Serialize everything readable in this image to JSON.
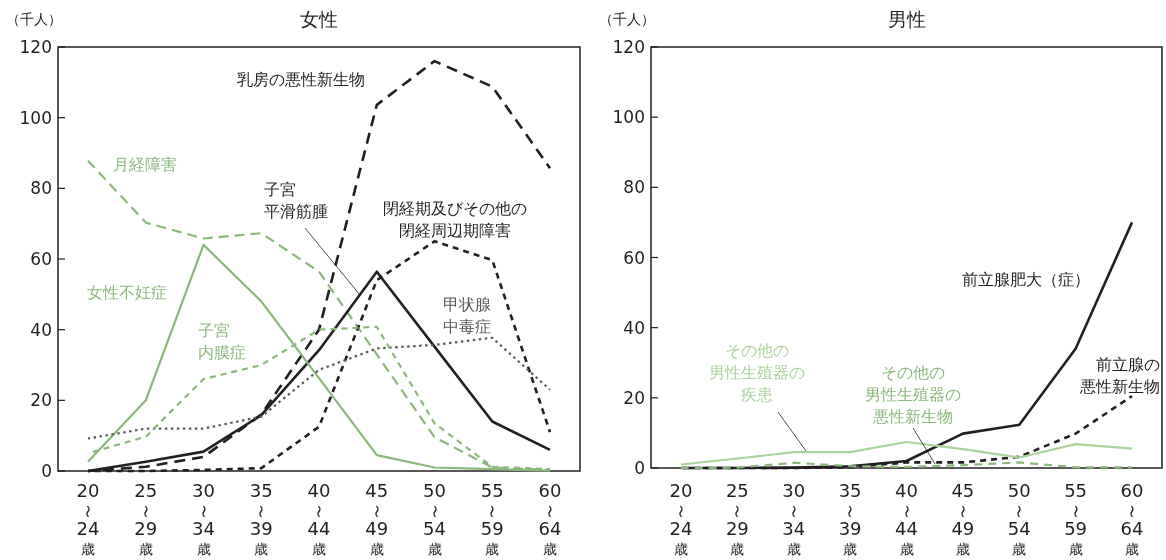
{
  "chart_data": [
    {
      "type": "line",
      "title": "女性",
      "ylabel": "（千人）",
      "categories": [
        "20\n〜\n24\n歳",
        "25\n〜\n29\n歳",
        "30\n〜\n34\n歳",
        "35\n〜\n39\n歳",
        "40\n〜\n44\n歳",
        "45\n〜\n49\n歳",
        "50\n〜\n54\n歳",
        "55\n〜\n59\n歳",
        "60\n〜\n64\n歳"
      ],
      "ylim": [
        0,
        120
      ],
      "yticks": [
        0,
        20,
        40,
        60,
        80,
        100,
        120
      ],
      "grid": false,
      "marker": "none",
      "series": [
        {
          "name": "乳房の悪性新生物",
          "color": "#231f20",
          "line_style": "dashed",
          "values": [
            0,
            1.2,
            4,
            16,
            40,
            103.6,
            116,
            108.8,
            85.7
          ]
        },
        {
          "name": "月経障害",
          "color": "#8ab87a",
          "line_style": "dashed",
          "values": [
            87.8,
            70.3,
            65.8,
            67.3,
            56.4,
            33,
            9.6,
            1,
            0.3
          ]
        },
        {
          "name": "子宮平滑筋腫",
          "color": "#231f20",
          "line_style": "solid",
          "values": [
            0,
            2.6,
            5.5,
            15.8,
            34.2,
            56.4,
            35.2,
            14,
            6
          ]
        },
        {
          "name": "閉経期及びその他の閉経周辺期障害",
          "color": "#231f20",
          "line_style": "dashed",
          "values": [
            0,
            0,
            0.3,
            0.8,
            12.5,
            54,
            65,
            59.7,
            11
          ]
        },
        {
          "name": "女性不妊症",
          "color": "#8ab87a",
          "line_style": "solid",
          "values": [
            2.6,
            20,
            64,
            48,
            26.3,
            4.5,
            1,
            0.5,
            0.1
          ]
        },
        {
          "name": "甲状腺中毒症",
          "color": "#58595b",
          "line_style": "dotted",
          "values": [
            9.2,
            12,
            12,
            15.4,
            28.6,
            34.7,
            35.7,
            37.7,
            23
          ]
        },
        {
          "name": "子宮内膜症",
          "color": "#8ab87a",
          "line_style": "dashed",
          "values": [
            5,
            9.7,
            26,
            30,
            40,
            40.8,
            13.5,
            1.2,
            0.5
          ]
        }
      ]
    },
    {
      "type": "line",
      "title": "男性",
      "ylabel": "（千人）",
      "categories": [
        "20\n〜\n24\n歳",
        "25\n〜\n29\n歳",
        "30\n〜\n34\n歳",
        "35\n〜\n39\n歳",
        "40\n〜\n44\n歳",
        "45\n〜\n49\n歳",
        "50\n〜\n54\n歳",
        "55\n〜\n59\n歳",
        "60\n〜\n64\n歳"
      ],
      "ylim": [
        0,
        120
      ],
      "yticks": [
        0,
        20,
        40,
        60,
        80,
        100,
        120
      ],
      "grid": false,
      "marker": "none",
      "series": [
        {
          "name": "前立腺肥大（症）",
          "color": "#231f20",
          "line_style": "solid",
          "values": [
            0,
            0,
            0.1,
            0.5,
            2,
            9.8,
            12.3,
            34,
            70
          ]
        },
        {
          "name": "前立腺の悪性新生物",
          "color": "#231f20",
          "line_style": "dashed",
          "values": [
            0,
            0,
            0,
            0.2,
            1.6,
            1.6,
            3.2,
            9.8,
            20.5
          ]
        },
        {
          "name": "その他の男性生殖器の疾患",
          "color": "#a9d39a",
          "line_style": "solid",
          "values": [
            1,
            2.7,
            4.5,
            4.5,
            7.4,
            5.4,
            3,
            6.8,
            5.5
          ]
        },
        {
          "name": "その他の男性生殖器の悪性新生物",
          "color": "#8ab87a",
          "line_style": "dashed",
          "values": [
            0,
            0.1,
            1.5,
            0.5,
            0.3,
            0.8,
            1.6,
            0.2,
            0.2
          ]
        }
      ]
    }
  ]
}
